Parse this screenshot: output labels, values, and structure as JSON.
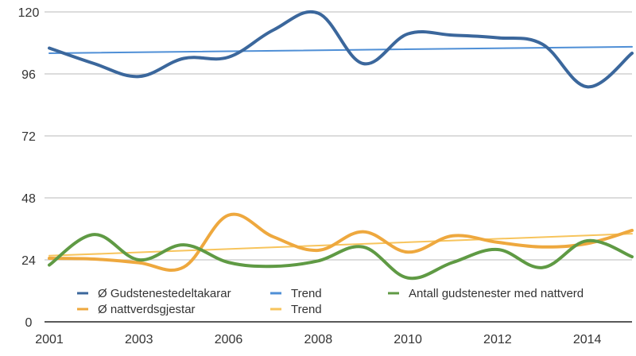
{
  "chart_data": {
    "type": "line",
    "title": "",
    "xlabel": "",
    "ylabel": "",
    "categories": [
      "2001",
      "",
      "2003",
      "",
      "2006",
      "",
      "2008",
      "",
      "2010",
      "",
      "2012",
      "",
      "2014",
      ""
    ],
    "x_tick_labels": [
      "2001",
      "2003",
      "2006",
      "2008",
      "2010",
      "2012",
      "2014"
    ],
    "ylim": [
      0,
      120
    ],
    "y_ticks": [
      0,
      24,
      48,
      72,
      96,
      120
    ],
    "grid": "horizontal",
    "smooth": true,
    "legend_position": "bottom-inside",
    "series": [
      {
        "name": "Ø Gudstenestedeltakarar",
        "color": "#3b679c",
        "width": 4,
        "values": [
          106,
          100,
          95,
          102,
          102.5,
          113,
          119.5,
          100,
          111.5,
          111,
          110,
          107.5,
          91,
          104
        ]
      },
      {
        "name": "Trend",
        "color": "#4f8fd6",
        "width": 2,
        "trend": true,
        "values": [
          104,
          104.2,
          104.4,
          104.6,
          104.8,
          105,
          105.2,
          105.3,
          105.5,
          105.7,
          105.9,
          106.1,
          106.3,
          106.5
        ]
      },
      {
        "name": "Antall gudstenester med nattverd",
        "color": "#5f9a44",
        "width": 4,
        "values": [
          22,
          33.8,
          24,
          29.8,
          23,
          21.5,
          23.6,
          29,
          17,
          23,
          28,
          21,
          31.4,
          25.2
        ]
      },
      {
        "name": "Ø nattverdsgjestar",
        "color": "#eea83e",
        "width": 4,
        "values": [
          24.6,
          24.3,
          22.9,
          21.2,
          41.3,
          32.9,
          27.7,
          34.9,
          27,
          33.3,
          30.8,
          29,
          30.3,
          35.4
        ]
      },
      {
        "name": "Trend",
        "color": "#f7c45c",
        "width": 2,
        "trend": true,
        "values": [
          25.6,
          26.3,
          26.9,
          27.6,
          28.2,
          28.9,
          29.5,
          30.2,
          30.8,
          31.5,
          32.1,
          32.8,
          33.4,
          34.1
        ]
      }
    ],
    "legend": [
      {
        "label": "Ø Gudstenestedeltakarar",
        "color": "#3b679c"
      },
      {
        "label": "Trend",
        "color": "#4f8fd6"
      },
      {
        "label": "Antall gudstenester med nattverd",
        "color": "#5f9a44"
      },
      {
        "label": "Ø nattverdsgjestar",
        "color": "#eea83e"
      },
      {
        "label": "Trend",
        "color": "#f7c45c"
      }
    ]
  }
}
